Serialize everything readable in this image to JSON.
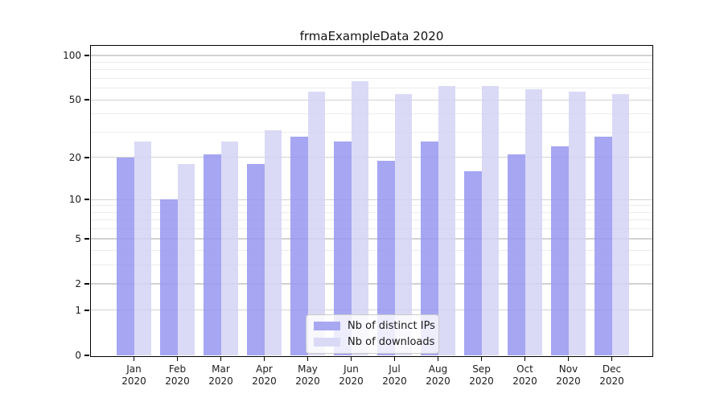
{
  "title": "frmaExampleData 2020",
  "legend": {
    "items": [
      {
        "label": "Nb of distinct IPs",
        "color": "#a8a8f2"
      },
      {
        "label": "Nb of downloads",
        "color": "#dadaf6"
      }
    ]
  },
  "chart_data": {
    "type": "bar",
    "title": "frmaExampleData 2020",
    "categories": [
      "Jan",
      "Feb",
      "Mar",
      "Apr",
      "May",
      "Jun",
      "Jul",
      "Aug",
      "Sep",
      "Oct",
      "Nov",
      "Dec"
    ],
    "x_axis": {
      "year_label": "2020"
    },
    "series": [
      {
        "name": "Nb of distinct IPs",
        "color": "rgba(150,150,241,0.85)",
        "legend_color": "#a8a8f2",
        "values": [
          20,
          10,
          21,
          18,
          28,
          26,
          19,
          26,
          16,
          21,
          24,
          28
        ]
      },
      {
        "name": "Nb of downloads",
        "color": "rgba(211,211,245,0.85)",
        "legend_color": "#dadaf6",
        "values": [
          26,
          18,
          26,
          31,
          57,
          67,
          55,
          62,
          62,
          59,
          57,
          55
        ]
      }
    ],
    "y_axis": {
      "scale": "log1p",
      "range": [
        0,
        100
      ],
      "ticks": [
        100,
        50,
        20,
        10,
        5,
        2,
        1,
        0
      ],
      "minor_gridlines": [
        3,
        4,
        6,
        7,
        8,
        9,
        30,
        40,
        60,
        70,
        80,
        90
      ],
      "major_gridlines": [
        1,
        2,
        5,
        10,
        20,
        50,
        100
      ]
    },
    "grid": "on",
    "legend_position": "lower-center",
    "colors": {
      "major_grid": "#d2d2d2",
      "minor_grid": "#ececec",
      "spine": "#000000"
    }
  }
}
